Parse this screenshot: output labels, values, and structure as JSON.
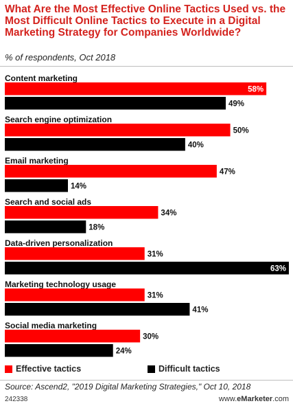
{
  "chart_data": {
    "type": "bar",
    "orientation": "horizontal",
    "title": "What Are the Most Effective Online Tactics Used vs. the Most Difficult Online Tactics to Execute in a Digital Marketing Strategy for Companies Worldwide?",
    "subtitle": "% of respondents, Oct 2018",
    "categories": [
      "Content marketing",
      "Search engine optimization",
      "Email marketing",
      "Search and social ads",
      "Data-driven personalization",
      "Marketing technology usage",
      "Social media marketing"
    ],
    "series": [
      {
        "name": "Effective tactics",
        "color": "#ff0000",
        "values": [
          58,
          50,
          47,
          34,
          31,
          31,
          30
        ]
      },
      {
        "name": "Difficult tactics",
        "color": "#000000",
        "values": [
          49,
          40,
          14,
          18,
          63,
          41,
          24
        ]
      }
    ],
    "value_suffix": "%",
    "xlim": [
      0,
      63
    ],
    "grid": false,
    "legend_position": "bottom"
  },
  "footer": {
    "source": "Source: Ascend2, \"2019 Digital Marketing Strategies,\" Oct 10, 2018",
    "chart_id": "242338",
    "brand_prefix": "www.",
    "brand_name": "eMarketer",
    "brand_suffix": ".com"
  }
}
